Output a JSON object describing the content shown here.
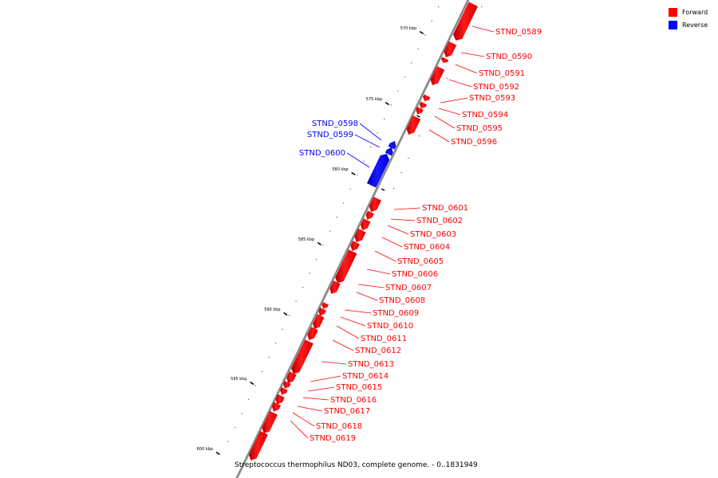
{
  "legend": {
    "items": [
      {
        "label": "Forward",
        "color": "#ff0000"
      },
      {
        "label": "Reverse",
        "color": "#0000ff"
      }
    ]
  },
  "caption": "Streptococcus thermophilus ND03, complete genome. - 0..1831949",
  "colors": {
    "forward": "#ff0000",
    "reverse": "#0000ff",
    "backbone": "#888888",
    "tick": "#000000"
  },
  "ticks": [
    {
      "label": "570 kbp",
      "kbp": 570
    },
    {
      "label": "575 kbp",
      "kbp": 575
    },
    {
      "label": "580 kbp",
      "kbp": 580
    },
    {
      "label": "585 kbp",
      "kbp": 585
    },
    {
      "label": "590 kbp",
      "kbp": 590
    },
    {
      "label": "595 kbp",
      "kbp": 595
    },
    {
      "label": "600 kbp",
      "kbp": 600
    }
  ],
  "genes": [
    {
      "name": "STND_0589",
      "strand": "forward"
    },
    {
      "name": "STND_0590",
      "strand": "forward"
    },
    {
      "name": "STND_0591",
      "strand": "forward"
    },
    {
      "name": "STND_0592",
      "strand": "forward"
    },
    {
      "name": "STND_0593",
      "strand": "forward"
    },
    {
      "name": "STND_0594",
      "strand": "forward"
    },
    {
      "name": "STND_0595",
      "strand": "forward"
    },
    {
      "name": "STND_0596",
      "strand": "forward"
    },
    {
      "name": "STND_0598",
      "strand": "reverse"
    },
    {
      "name": "STND_0599",
      "strand": "reverse"
    },
    {
      "name": "STND_0600",
      "strand": "reverse"
    },
    {
      "name": "STND_0601",
      "strand": "forward"
    },
    {
      "name": "STND_0602",
      "strand": "forward"
    },
    {
      "name": "STND_0603",
      "strand": "forward"
    },
    {
      "name": "STND_0604",
      "strand": "forward"
    },
    {
      "name": "STND_0605",
      "strand": "forward"
    },
    {
      "name": "STND_0606",
      "strand": "forward"
    },
    {
      "name": "STND_0607",
      "strand": "forward"
    },
    {
      "name": "STND_0608",
      "strand": "forward"
    },
    {
      "name": "STND_0609",
      "strand": "forward"
    },
    {
      "name": "STND_0610",
      "strand": "forward"
    },
    {
      "name": "STND_0611",
      "strand": "forward"
    },
    {
      "name": "STND_0612",
      "strand": "forward"
    },
    {
      "name": "STND_0613",
      "strand": "forward"
    },
    {
      "name": "STND_0614",
      "strand": "forward"
    },
    {
      "name": "STND_0615",
      "strand": "forward"
    },
    {
      "name": "STND_0616",
      "strand": "forward"
    },
    {
      "name": "STND_0617",
      "strand": "forward"
    },
    {
      "name": "STND_0618",
      "strand": "forward"
    },
    {
      "name": "STND_0619",
      "strand": "forward"
    }
  ]
}
